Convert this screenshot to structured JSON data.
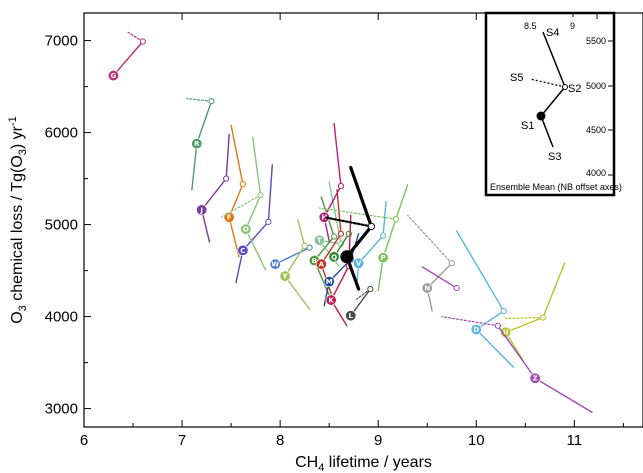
{
  "chart_data": {
    "type": "scatter",
    "title": "",
    "xlabel": "CH4 lifetime / years",
    "xlabel_main": "CH",
    "xlabel_sub": "4",
    "xlabel_rest": " lifetime / years",
    "ylabel": "O3 chemical loss / Tg(O3) yr-1",
    "ylabel_main": "O",
    "ylabel_sub": "3",
    "ylabel_mid": " chemical loss / Tg(O",
    "ylabel_sub2": "3",
    "ylabel_end": ") yr",
    "ylabel_sup": "-1",
    "xlim": [
      6,
      11.7
    ],
    "ylim": [
      2800,
      7300
    ],
    "xticks": [
      6,
      7,
      8,
      9,
      10,
      11
    ],
    "xtick_labels": [
      "6",
      "7",
      "8",
      "9",
      "10",
      "11"
    ],
    "yticks": [
      3000,
      4000,
      5000,
      6000,
      7000
    ],
    "ytick_labels": [
      "3000",
      "4000",
      "5000",
      "6000",
      "7000"
    ],
    "grid": false,
    "models": [
      {
        "label": "G",
        "color": "#b0307a",
        "s1": [
          6.3,
          6620
        ],
        "s2": [
          6.6,
          6990
        ],
        "s3": null,
        "s4": null,
        "s5": [
          6.45,
          7090
        ]
      },
      {
        "label": "R",
        "color": "#4a9a6a",
        "s1": [
          7.15,
          5880
        ],
        "s2": [
          7.3,
          6340
        ],
        "s3": [
          7.1,
          5380
        ],
        "s4": [
          7.3,
          6370
        ],
        "s5": [
          7.05,
          6370
        ]
      },
      {
        "label": "J",
        "color": "#7a3a9a",
        "s1": [
          7.2,
          5160
        ],
        "s2": [
          7.45,
          5500
        ],
        "s3": [
          7.28,
          4810
        ],
        "s4": [
          7.48,
          5980
        ],
        "s5": null
      },
      {
        "label": "F",
        "color": "#e07a10",
        "s1": [
          7.48,
          5080
        ],
        "s2": [
          7.62,
          5440
        ],
        "s3": [
          7.58,
          4650
        ],
        "s4": [
          7.5,
          6080
        ],
        "s5": null
      },
      {
        "label": "C",
        "color": "#5a4ac0",
        "s1": [
          7.62,
          4720
        ],
        "s2": [
          7.88,
          5030
        ],
        "s3": [
          7.55,
          4370
        ],
        "s4": [
          7.92,
          5650
        ],
        "s5": null
      },
      {
        "label": "O",
        "color": "#8ac47a",
        "s1": [
          7.65,
          4950
        ],
        "s2": [
          7.8,
          5320
        ],
        "s3": [
          7.85,
          4510
        ],
        "s4": [
          7.72,
          5950
        ],
        "s5": [
          7.4,
          5080
        ]
      },
      {
        "label": "W",
        "color": "#4a7ac8",
        "s1": [
          7.95,
          4570
        ],
        "s2": [
          8.3,
          4750
        ],
        "s3": null,
        "s4": null,
        "s5": null
      },
      {
        "label": "Y",
        "color": "#9ac45a",
        "s1": [
          8.05,
          4440
        ],
        "s2": [
          8.25,
          4770
        ],
        "s3": [
          8.3,
          4080
        ],
        "s4": [
          8.18,
          5050
        ],
        "s5": null
      },
      {
        "label": "T",
        "color": "#8ac49a",
        "s1": [
          8.4,
          4830
        ],
        "s2": [
          8.62,
          4790
        ],
        "s3": [
          8.6,
          4550
        ],
        "s4": [
          8.5,
          5460
        ],
        "s5": null
      },
      {
        "label": "B",
        "color": "#4a9a3a",
        "s1": [
          8.35,
          4610
        ],
        "s2": [
          8.55,
          4870
        ],
        "s3": [
          8.5,
          4230
        ],
        "s4": [
          8.42,
          5300
        ],
        "s5": null
      },
      {
        "label": "A",
        "color": "#c0302a",
        "s1": [
          8.42,
          4570
        ],
        "s2": [
          8.62,
          4900
        ],
        "s3": [
          8.52,
          4250
        ],
        "s4": [
          8.58,
          5380
        ],
        "s5": null
      },
      {
        "label": "H",
        "color": "#b0207a",
        "s1": [
          8.45,
          5080
        ],
        "s2": [
          8.62,
          5420
        ],
        "s3": [
          8.5,
          4820
        ],
        "s4": [
          8.55,
          6100
        ],
        "s5": null
      },
      {
        "label": "Q",
        "color": "#2a8a2a",
        "s1": [
          8.55,
          4650
        ],
        "s2": [
          8.7,
          4900
        ],
        "s3": null,
        "s4": null,
        "s5": null
      },
      {
        "label": "M",
        "color": "#1a4a9a",
        "s1": [
          8.5,
          4380
        ],
        "s2": [
          8.72,
          4620
        ],
        "s3": [
          8.45,
          4120
        ],
        "s4": [
          8.8,
          4900
        ],
        "s5": null
      },
      {
        "label": "K",
        "color": "#c01a4a",
        "s1": [
          8.52,
          4180
        ],
        "s2": [
          8.7,
          4550
        ],
        "s3": [
          8.68,
          3900
        ],
        "s4": [
          8.72,
          5100
        ],
        "s5": null
      },
      {
        "label": "V",
        "color": "#5ab4e0",
        "s1": [
          8.8,
          4580
        ],
        "s2": [
          9.05,
          4880
        ],
        "s3": [
          8.78,
          4320
        ],
        "s4": [
          9.08,
          5250
        ],
        "s5": null
      },
      {
        "label": "L",
        "color": "#4a4a4a",
        "s1": [
          8.72,
          4010
        ],
        "s2": [
          8.92,
          4300
        ],
        "s3": null,
        "s4": null,
        "s5": [
          8.78,
          4190
        ]
      },
      {
        "label": "P",
        "color": "#7ac45a",
        "s1": [
          9.05,
          4640
        ],
        "s2": [
          9.18,
          5060
        ],
        "s3": [
          9.0,
          4280
        ],
        "s4": [
          9.3,
          5430
        ],
        "s5": [
          8.4,
          5180
        ]
      },
      {
        "label": "N",
        "color": "#9a9a9a",
        "s1": [
          9.5,
          4310
        ],
        "s2": [
          9.75,
          4580
        ],
        "s3": [
          9.55,
          4060
        ],
        "s4": null,
        "s5": [
          9.3,
          5100
        ]
      },
      {
        "label": "D",
        "color": "#5ab4e0",
        "s1": [
          10.0,
          3860
        ],
        "s2": [
          10.28,
          4060
        ],
        "s3": [
          10.38,
          3450
        ],
        "s4": [
          9.8,
          4930
        ],
        "s5": null
      },
      {
        "label": "U",
        "color": "#b4c42a",
        "s1": [
          10.3,
          3830
        ],
        "s2": [
          10.68,
          3990
        ],
        "s3": [
          10.48,
          3520
        ],
        "s4": [
          10.9,
          4580
        ],
        "s5": [
          10.3,
          3980
        ]
      },
      {
        "label": "Z",
        "color": "#a04ab4",
        "s1": [
          10.6,
          3330
        ],
        "s2": [
          10.22,
          3900
        ],
        "s3": [
          11.18,
          2960
        ],
        "s4": null,
        "s5": [
          9.65,
          4000
        ]
      },
      {
        "label": "",
        "color": "#a04ab4",
        "s1": null,
        "s2": [
          9.8,
          4310
        ],
        "s3": null,
        "s4": [
          9.45,
          4540
        ],
        "s5": null
      }
    ],
    "ensemble_mean": {
      "color": "#000000",
      "s1": [
        8.68,
        4650
      ],
      "s2": [
        8.93,
        4980
      ],
      "s3": [
        8.8,
        4300
      ],
      "s4": [
        8.72,
        5620
      ],
      "s5": [
        8.45,
        5080
      ]
    },
    "inset": {
      "caption": "Ensemble Mean (NB offset axes)",
      "xtick_labels": [
        "8.5",
        "9"
      ],
      "ytick_labels": [
        "5500",
        "5000",
        "4500",
        "4000"
      ],
      "labels": [
        "S4",
        "S5",
        "S2",
        "S1",
        "S3"
      ]
    }
  }
}
